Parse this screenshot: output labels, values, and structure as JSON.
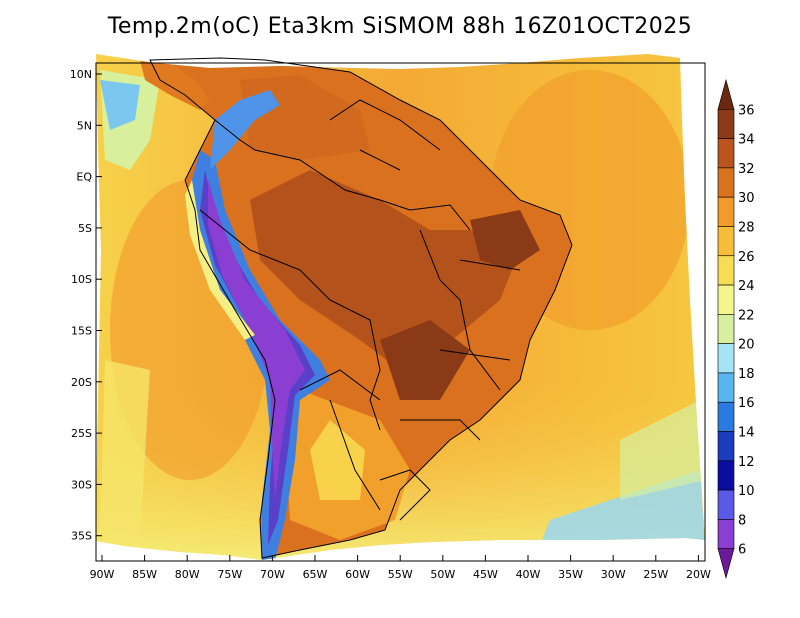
{
  "title": "Temp.2m(oC) Eta3km SiSMOM 88h 16Z01OCT2025",
  "map": {
    "lon_range": [
      -90,
      -20
    ],
    "lat_range": [
      -37,
      12
    ],
    "x_ticks": [
      "90W",
      "85W",
      "80W",
      "75W",
      "70W",
      "65W",
      "60W",
      "55W",
      "50W",
      "45W",
      "40W",
      "35W",
      "30W",
      "25W",
      "20W"
    ],
    "y_ticks": [
      "10N",
      "5N",
      "EQ",
      "5S",
      "10S",
      "15S",
      "20S",
      "25S",
      "30S",
      "35S"
    ]
  },
  "colorbar": {
    "labels": [
      "36",
      "34",
      "32",
      "30",
      "28",
      "26",
      "24",
      "22",
      "20",
      "18",
      "16",
      "14",
      "12",
      "10",
      "8",
      "6"
    ],
    "colors": [
      "#6b2810",
      "#8a3a16",
      "#b8541c",
      "#d8721f",
      "#f29a2a",
      "#f7bd38",
      "#f7dd52",
      "#f5f58c",
      "#d6f0a0",
      "#a6e3f5",
      "#5ab4ef",
      "#2a7ae0",
      "#1a3cbe",
      "#0b0ca0",
      "#5a5ae8",
      "#8a3ed2",
      "#6a1b9a"
    ]
  }
}
